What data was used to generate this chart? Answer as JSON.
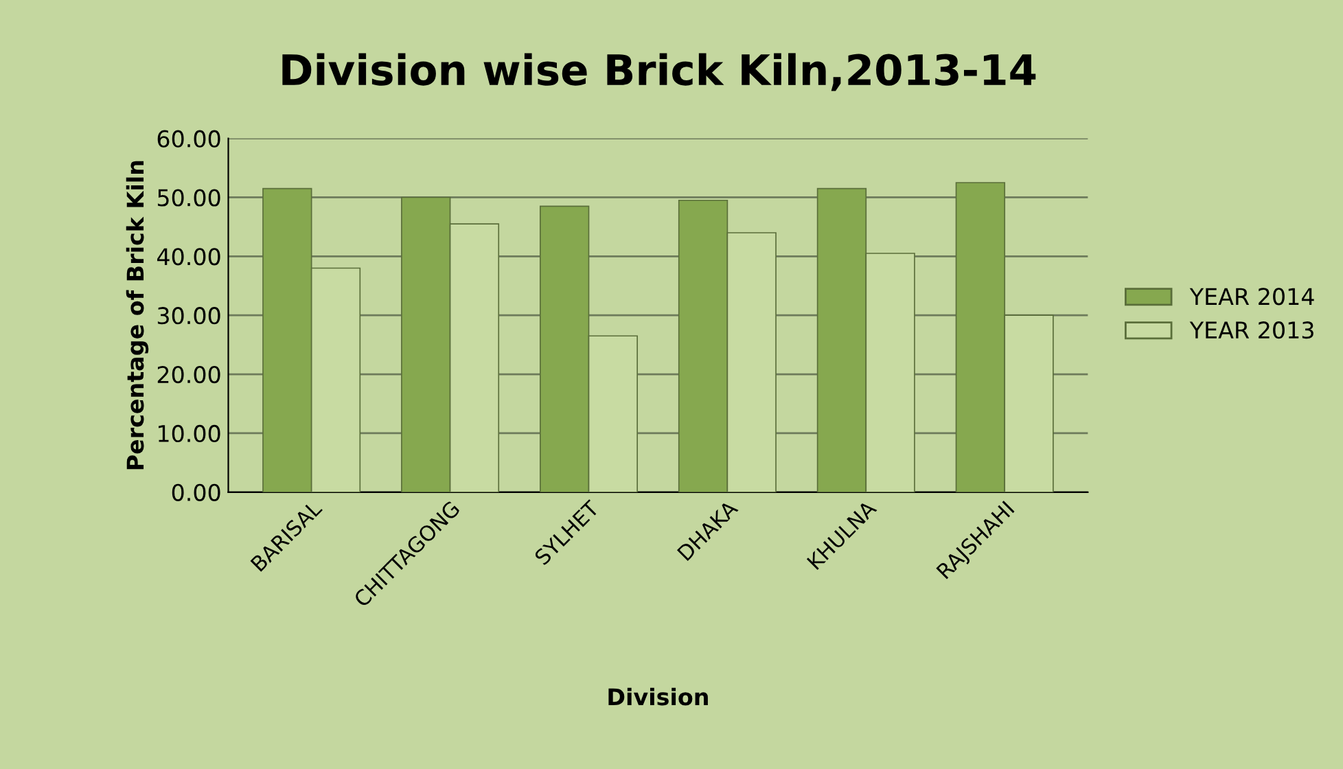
{
  "chart_data": {
    "type": "bar",
    "title": "Division wise Brick Kiln,2013-14",
    "xlabel": "Division",
    "ylabel": "Percentage of Brick Kiln",
    "categories": [
      "BARISAL",
      "CHITTAGONG",
      "SYLHET",
      "DHAKA",
      "KHULNA",
      "RAJSHAHI"
    ],
    "series": [
      {
        "name": "YEAR 2014",
        "color": "#86a84f",
        "values": [
          51.5,
          50.0,
          48.5,
          49.5,
          51.5,
          52.5
        ]
      },
      {
        "name": "YEAR 2013",
        "color": "#c8dba2",
        "values": [
          38.0,
          45.5,
          26.5,
          44.0,
          40.5,
          30.0
        ]
      }
    ],
    "ylim": [
      0,
      60
    ],
    "yticks": [
      {
        "value": 0,
        "label": "0.00"
      },
      {
        "value": 10,
        "label": "10.00"
      },
      {
        "value": 20,
        "label": "20.00"
      },
      {
        "value": 30,
        "label": "30.00"
      },
      {
        "value": 40,
        "label": "40.00"
      },
      {
        "value": 50,
        "label": "50.00"
      },
      {
        "value": 60,
        "label": "60.00"
      }
    ],
    "grid": "y",
    "legend": "right"
  }
}
